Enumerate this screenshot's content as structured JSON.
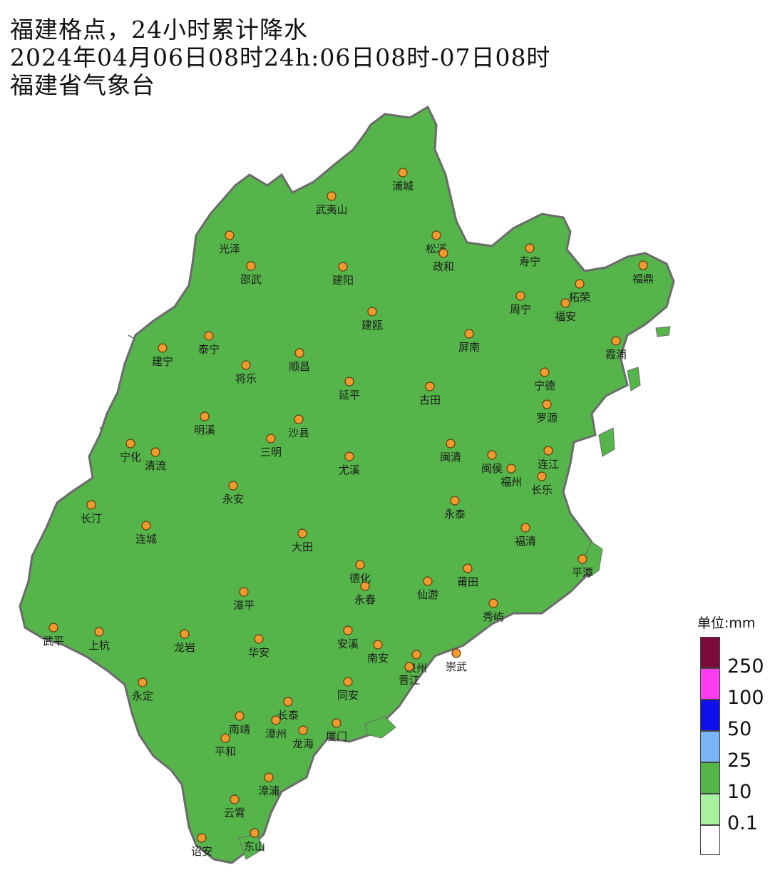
{
  "header": {
    "title": "福建格点，24小时累计降水",
    "time": "2024年04月06日08时24h:06日08时-07日08时",
    "issuer": "福建省气象台"
  },
  "colors": {
    "c0_1": "#a9f0a0",
    "c10": "#55b54a",
    "c25": "#78b6f6",
    "c50": "#1010ee",
    "c100": "#ff3cf0",
    "c250": "#7a0a3c",
    "border": "#6b6b6b"
  },
  "legend": {
    "unit": "单位:mm",
    "labels": [
      "250",
      "100",
      "50",
      "25",
      "10",
      "0.1"
    ]
  },
  "stations": [
    {
      "name": "浦城",
      "ic": "orange-circle-icon"
    },
    {
      "name": "武夷山",
      "ic": "orange-circle-icon"
    },
    {
      "name": "光泽",
      "ic": "orange-circle-icon"
    },
    {
      "name": "松溪",
      "ic": "orange-circle-icon"
    },
    {
      "name": "政和",
      "ic": "orange-circle-icon"
    },
    {
      "name": "邵武",
      "ic": "orange-circle-icon"
    },
    {
      "name": "建阳",
      "ic": "orange-circle-icon"
    },
    {
      "name": "寿宁",
      "ic": "orange-circle-icon"
    },
    {
      "name": "福鼎",
      "ic": "orange-circle-icon"
    },
    {
      "name": "柘荣",
      "ic": "orange-circle-icon"
    },
    {
      "name": "周宁",
      "ic": "orange-circle-icon"
    },
    {
      "name": "福安",
      "ic": "orange-circle-icon"
    },
    {
      "name": "建瓯",
      "ic": "orange-circle-icon"
    },
    {
      "name": "泰宁",
      "ic": "orange-circle-icon"
    },
    {
      "name": "建宁",
      "ic": "orange-circle-icon"
    },
    {
      "name": "屏南",
      "ic": "orange-circle-icon"
    },
    {
      "name": "霞浦",
      "ic": "orange-circle-icon"
    },
    {
      "name": "将乐",
      "ic": "orange-circle-icon"
    },
    {
      "name": "顺昌",
      "ic": "orange-circle-icon"
    },
    {
      "name": "延平",
      "ic": "orange-circle-icon"
    },
    {
      "name": "宁德",
      "ic": "orange-circle-icon"
    },
    {
      "name": "古田",
      "ic": "orange-circle-icon"
    },
    {
      "name": "罗源",
      "ic": "orange-circle-icon"
    },
    {
      "name": "明溪",
      "ic": "orange-circle-icon"
    },
    {
      "name": "沙县",
      "ic": "orange-circle-icon"
    },
    {
      "name": "三明",
      "ic": "orange-circle-icon"
    },
    {
      "name": "宁化",
      "ic": "orange-circle-icon"
    },
    {
      "name": "清流",
      "ic": "orange-circle-icon"
    },
    {
      "name": "尤溪",
      "ic": "orange-circle-icon"
    },
    {
      "name": "闽清",
      "ic": "orange-circle-icon"
    },
    {
      "name": "连江",
      "ic": "orange-circle-icon"
    },
    {
      "name": "闽侯",
      "ic": "orange-circle-icon"
    },
    {
      "name": "福州",
      "ic": "orange-circle-icon"
    },
    {
      "name": "长乐",
      "ic": "orange-circle-icon"
    },
    {
      "name": "永安",
      "ic": "orange-circle-icon"
    },
    {
      "name": "长汀",
      "ic": "orange-circle-icon"
    },
    {
      "name": "永泰",
      "ic": "orange-circle-icon"
    },
    {
      "name": "连城",
      "ic": "orange-circle-icon"
    },
    {
      "name": "大田",
      "ic": "orange-circle-icon"
    },
    {
      "name": "福清",
      "ic": "orange-circle-icon"
    },
    {
      "name": "平潭",
      "ic": "orange-circle-icon"
    },
    {
      "name": "德化",
      "ic": "orange-circle-icon"
    },
    {
      "name": "莆田",
      "ic": "orange-circle-icon"
    },
    {
      "name": "仙游",
      "ic": "orange-circle-icon"
    },
    {
      "name": "漳平",
      "ic": "orange-circle-icon"
    },
    {
      "name": "永春",
      "ic": "orange-circle-icon"
    },
    {
      "name": "秀屿",
      "ic": "orange-circle-icon"
    },
    {
      "name": "武平",
      "ic": "orange-circle-icon"
    },
    {
      "name": "上杭",
      "ic": "orange-circle-icon"
    },
    {
      "name": "龙岩",
      "ic": "orange-circle-icon"
    },
    {
      "name": "安溪",
      "ic": "orange-circle-icon"
    },
    {
      "name": "华安",
      "ic": "orange-circle-icon"
    },
    {
      "name": "南安",
      "ic": "orange-circle-icon"
    },
    {
      "name": "泉州",
      "ic": "orange-circle-icon"
    },
    {
      "name": "崇武",
      "ic": "orange-circle-icon"
    },
    {
      "name": "晋江",
      "ic": "orange-circle-icon"
    },
    {
      "name": "永定",
      "ic": "orange-circle-icon"
    },
    {
      "name": "同安",
      "ic": "orange-circle-icon"
    },
    {
      "name": "长泰",
      "ic": "orange-circle-icon"
    },
    {
      "name": "南靖",
      "ic": "orange-circle-icon"
    },
    {
      "name": "漳州",
      "ic": "orange-circle-icon"
    },
    {
      "name": "龙海",
      "ic": "orange-circle-icon"
    },
    {
      "name": "厦门",
      "ic": "orange-circle-icon"
    },
    {
      "name": "平和",
      "ic": "orange-circle-icon"
    },
    {
      "name": "漳浦",
      "ic": "orange-circle-icon"
    },
    {
      "name": "云霄",
      "ic": "orange-circle-icon"
    },
    {
      "name": "诏安",
      "ic": "orange-circle-icon"
    },
    {
      "name": "东山",
      "ic": "orange-circle-icon"
    }
  ]
}
